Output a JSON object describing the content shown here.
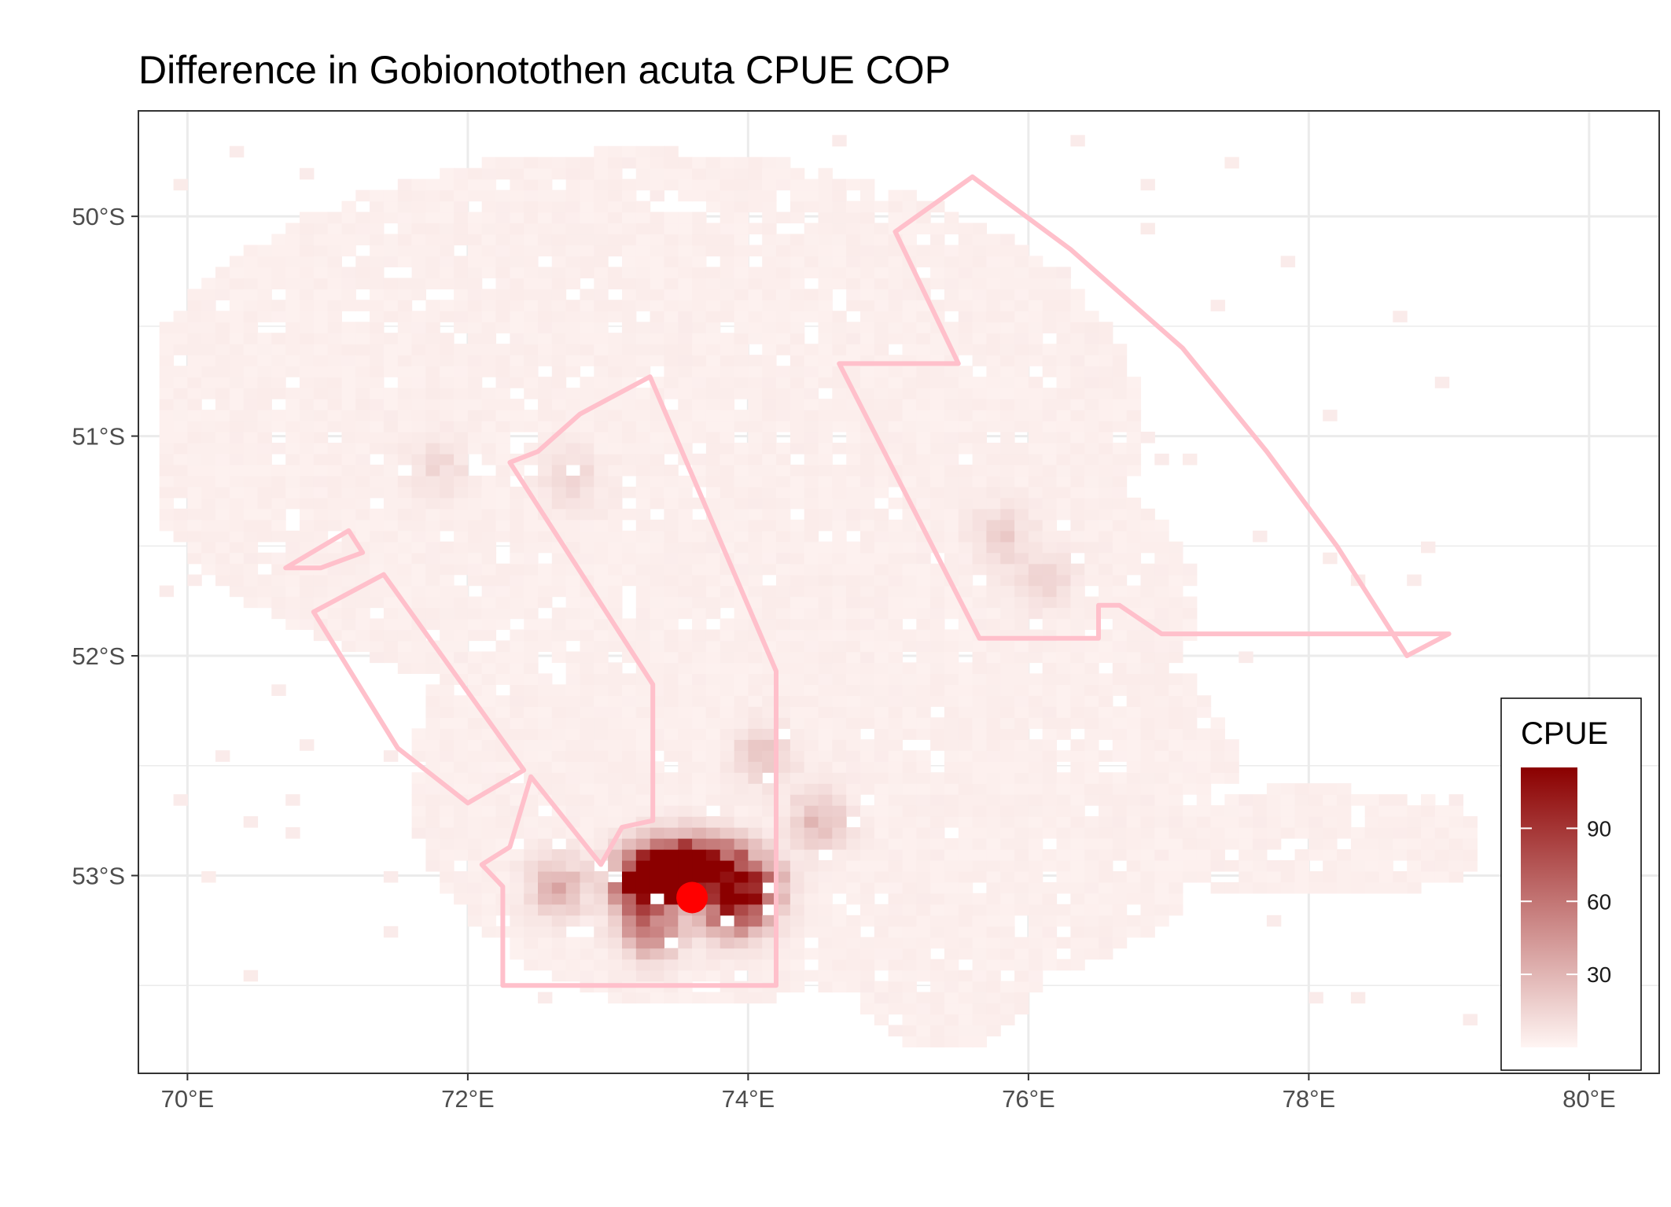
{
  "title": "Difference in  Gobionotothen acuta CPUE COP",
  "chart_data": {
    "type": "heatmap",
    "title": "Difference in  Gobionotothen acuta CPUE COP",
    "xlabel": "",
    "ylabel": "",
    "xlim": [
      69.65,
      80.5
    ],
    "ylim": [
      -53.9,
      -49.52
    ],
    "x_ticks": [
      70,
      72,
      74,
      76,
      78,
      80
    ],
    "x_tick_labels": [
      "70°E",
      "72°E",
      "74°E",
      "76°E",
      "78°E",
      "80°E"
    ],
    "y_ticks": [
      -50,
      -51,
      -52,
      -53
    ],
    "y_tick_labels": [
      "50°S",
      "51°S",
      "52°S",
      "53°S"
    ],
    "grid": true,
    "legend": {
      "title": "CPUE",
      "placement": "bottom-right",
      "range": [
        0,
        115
      ],
      "ticks": [
        30,
        60,
        90
      ],
      "tick_labels": [
        "30",
        "60",
        "90"
      ],
      "colors": [
        "#fff5f3",
        "#8b0000"
      ]
    },
    "colors": {
      "low": "#fff5f3",
      "high": "#8b0000",
      "boundary": "#ffc0cb",
      "point": "#ff0000",
      "grid": "#ebebeb",
      "panel_border": "#333333"
    },
    "cell_size_deg": [
      0.1,
      0.05
    ],
    "hotspots": [
      {
        "lon": 73.3,
        "lat": -53.0,
        "cpue": 115
      },
      {
        "lon": 73.55,
        "lat": -52.97,
        "cpue": 112
      },
      {
        "lon": 73.7,
        "lat": -52.97,
        "cpue": 70
      },
      {
        "lon": 73.85,
        "lat": -52.97,
        "cpue": 65
      },
      {
        "lon": 73.27,
        "lat": -53.05,
        "cpue": 95
      },
      {
        "lon": 73.9,
        "lat": -53.15,
        "cpue": 105
      },
      {
        "lon": 74.05,
        "lat": -53.05,
        "cpue": 75
      },
      {
        "lon": 73.45,
        "lat": -52.97,
        "cpue": 45
      },
      {
        "lon": 72.65,
        "lat": -53.05,
        "cpue": 35
      },
      {
        "lon": 73.3,
        "lat": -53.25,
        "cpue": 60
      },
      {
        "lon": 74.5,
        "lat": -52.75,
        "cpue": 28
      },
      {
        "lon": 74.1,
        "lat": -52.45,
        "cpue": 22
      },
      {
        "lon": 75.8,
        "lat": -51.45,
        "cpue": 18
      },
      {
        "lon": 76.1,
        "lat": -51.65,
        "cpue": 16
      },
      {
        "lon": 72.75,
        "lat": -51.2,
        "cpue": 14
      },
      {
        "lon": 71.8,
        "lat": -51.15,
        "cpue": 12
      }
    ],
    "point": {
      "lon": 73.6,
      "lat": -53.1
    },
    "polygons": [
      {
        "coords": [
          [
            70.7,
            -51.6
          ],
          [
            71.15,
            -51.43
          ],
          [
            71.25,
            -51.53
          ],
          [
            70.95,
            -51.6
          ]
        ]
      },
      {
        "coords": [
          [
            70.9,
            -51.8
          ],
          [
            71.4,
            -51.63
          ],
          [
            72.4,
            -52.52
          ],
          [
            72.0,
            -52.67
          ],
          [
            71.5,
            -52.42
          ]
        ]
      },
      {
        "coords": [
          [
            72.3,
            -51.12
          ],
          [
            72.5,
            -51.07
          ],
          [
            72.8,
            -50.9
          ],
          [
            73.3,
            -50.73
          ],
          [
            74.2,
            -52.07
          ],
          [
            74.2,
            -53.5
          ],
          [
            72.25,
            -53.5
          ],
          [
            72.25,
            -53.05
          ],
          [
            72.1,
            -52.95
          ],
          [
            72.3,
            -52.87
          ],
          [
            72.45,
            -52.55
          ],
          [
            72.95,
            -52.95
          ],
          [
            73.1,
            -52.78
          ],
          [
            73.32,
            -52.75
          ],
          [
            73.32,
            -52.13
          ]
        ]
      },
      {
        "coords": [
          [
            74.65,
            -50.67
          ],
          [
            75.5,
            -50.67
          ],
          [
            75.05,
            -50.07
          ],
          [
            75.6,
            -49.82
          ],
          [
            76.3,
            -50.15
          ],
          [
            77.1,
            -50.6
          ],
          [
            77.7,
            -51.07
          ],
          [
            78.2,
            -51.5
          ],
          [
            78.7,
            -52.0
          ],
          [
            79.0,
            -51.9
          ],
          [
            76.95,
            -51.9
          ],
          [
            76.65,
            -51.77
          ],
          [
            76.5,
            -51.77
          ],
          [
            76.5,
            -51.92
          ],
          [
            75.65,
            -51.92
          ]
        ]
      }
    ]
  }
}
